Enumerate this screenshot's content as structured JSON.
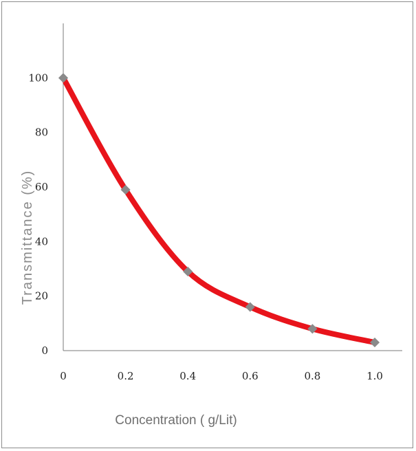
{
  "chart_data": {
    "type": "line",
    "title": "",
    "xlabel": "Concentration ( g/Lit)",
    "ylabel": "Transmittance (%)",
    "xlim": [
      0,
      1.0
    ],
    "ylim": [
      0,
      120
    ],
    "x_tick_labels": [
      "0",
      "0.2",
      "0.4",
      "0.6",
      "0.8",
      "1.0"
    ],
    "y_tick_labels": [
      "0",
      "20",
      "40",
      "60",
      "80",
      "100"
    ],
    "grid": false,
    "legend": "none",
    "line_color": "#e8141b",
    "marker_color": "#8a8a8a",
    "series": [
      {
        "x": [
          0,
          0.2,
          0.4,
          0.6,
          0.8,
          1.0
        ],
        "y": [
          100,
          59,
          29,
          16,
          8,
          3
        ]
      }
    ]
  }
}
